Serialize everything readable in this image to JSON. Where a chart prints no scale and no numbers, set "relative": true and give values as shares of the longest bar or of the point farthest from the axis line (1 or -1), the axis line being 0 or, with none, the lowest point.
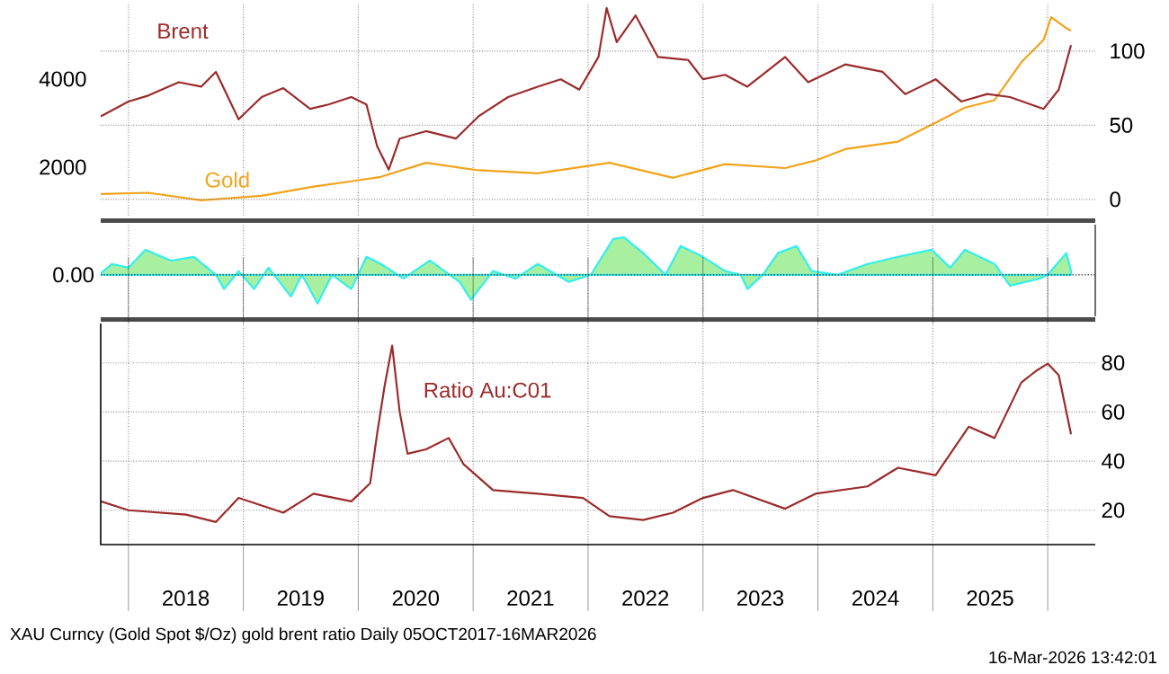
{
  "chart_data": [
    {
      "type": "line",
      "xlim": [
        "2017-10-05",
        "2026-06-01"
      ],
      "xticks": [
        {
          "value": "2018-01-01",
          "label": null
        },
        {
          "value": "2019-01-01",
          "label": null
        },
        {
          "value": "2020-01-01",
          "label": null
        },
        {
          "value": "2021-01-01",
          "label": null
        },
        {
          "value": "2022-01-01",
          "label": null
        },
        {
          "value": "2023-01-01",
          "label": null
        },
        {
          "value": "2024-01-01",
          "label": null
        },
        {
          "value": "2025-01-01",
          "label": null
        },
        {
          "value": "2026-01-01",
          "label": null
        }
      ],
      "ylim": [
        900,
        5710
      ],
      "yticks": [
        2000,
        4000
      ],
      "y2lim": [
        -11,
        132
      ],
      "y2ticks": [
        0,
        50,
        100
      ],
      "grid": true,
      "tick_labels": "y",
      "series": [
        {
          "name": "Brent",
          "axis": "y2",
          "color": "#9b2b2b",
          "x": [
            "2017-10-05",
            "2018-01-01",
            "2018-03-05",
            "2018-06-10",
            "2018-08-20",
            "2018-10-06",
            "2018-12-17",
            "2019-02-28",
            "2019-05-08",
            "2019-08-01",
            "2019-09-29",
            "2019-12-10",
            "2020-01-27",
            "2020-03-01",
            "2020-04-07",
            "2020-05-12",
            "2020-08-04",
            "2020-11-07",
            "2021-01-18",
            "2021-04-22",
            "2021-07-25",
            "2021-10-06",
            "2021-12-04",
            "2022-02-03",
            "2022-03-01",
            "2022-04-02",
            "2022-06-01",
            "2022-08-11",
            "2022-11-15",
            "2023-01-01",
            "2023-03-12",
            "2023-05-22",
            "2023-09-19",
            "2023-12-01",
            "2024-03-28",
            "2024-07-25",
            "2024-10-05",
            "2025-01-10",
            "2025-04-01",
            "2025-06-23",
            "2025-09-03",
            "2025-12-19",
            "2026-02-05",
            "2026-03-16"
          ],
          "values": [
            56,
            66,
            70,
            79,
            76,
            86,
            54,
            69,
            75,
            61,
            64,
            69,
            64,
            36,
            20,
            41,
            46,
            41,
            56,
            69,
            76,
            81,
            74,
            96,
            129,
            106,
            124,
            96,
            94,
            81,
            84,
            76,
            96,
            79,
            91,
            86,
            71,
            81,
            66,
            71,
            69,
            61,
            74,
            104
          ]
        },
        {
          "name": "Gold",
          "color": "#f2a31b",
          "x": [
            "2017-10-05",
            "2018-03-05",
            "2018-08-20",
            "2019-02-28",
            "2019-08-12",
            "2019-12-10",
            "2020-03-13",
            "2020-08-04",
            "2021-01-18",
            "2021-07-25",
            "2022-03-10",
            "2022-09-28",
            "2023-03-12",
            "2023-09-19",
            "2023-12-24",
            "2024-03-28",
            "2024-09-12",
            "2025-01-10",
            "2025-04-13",
            "2025-07-16",
            "2025-10-09",
            "2025-12-19",
            "2026-01-12",
            "2026-03-01",
            "2026-03-16"
          ],
          "values": [
            1390,
            1420,
            1250,
            1350,
            1560,
            1680,
            1780,
            2100,
            1930,
            1860,
            2100,
            1760,
            2070,
            1980,
            2150,
            2410,
            2580,
            3010,
            3350,
            3520,
            4380,
            4890,
            5400,
            5150,
            5100
          ]
        }
      ]
    },
    {
      "type": "area",
      "relative": true,
      "color": "#33eeee",
      "xlim": [
        "2017-10-05",
        "2026-06-01"
      ],
      "xticks": [
        {
          "value": "2018-01-01",
          "label": null
        },
        {
          "value": "2019-01-01",
          "label": null
        },
        {
          "value": "2020-01-01",
          "label": null
        },
        {
          "value": "2021-01-01",
          "label": null
        },
        {
          "value": "2022-01-01",
          "label": null
        },
        {
          "value": "2023-01-01",
          "label": null
        },
        {
          "value": "2024-01-01",
          "label": null
        },
        {
          "value": "2025-01-01",
          "label": null
        },
        {
          "value": "2026-01-01",
          "label": null
        }
      ],
      "grid": "x",
      "tick_labels": false,
      "ref_lines": [
        {
          "axis": "y",
          "value": 0,
          "label": "0.00",
          "line_style": "dotted"
        }
      ],
      "x": [
        "2017-10-05",
        "2017-11-10",
        "2018-01-01",
        "2018-02-24",
        "2018-05-16",
        "2018-07-28",
        "2018-10-06",
        "2018-11-01",
        "2018-12-17",
        "2019-02-04",
        "2019-03-22",
        "2019-06-01",
        "2019-07-06",
        "2019-08-25",
        "2019-10-10",
        "2019-12-10",
        "2020-01-27",
        "2020-03-13",
        "2020-05-24",
        "2020-08-16",
        "2020-11-19",
        "2020-12-25",
        "2021-03-05",
        "2021-05-16",
        "2021-07-25",
        "2021-11-01",
        "2022-01-10",
        "2022-03-22",
        "2022-04-25",
        "2022-06-25",
        "2022-09-04",
        "2022-10-22",
        "2023-01-01",
        "2023-03-12",
        "2023-05-01",
        "2023-05-22",
        "2023-07-10",
        "2023-08-27",
        "2023-10-25",
        "2023-12-12",
        "2024-03-04",
        "2024-06-07",
        "2024-09-12",
        "2024-12-28",
        "2025-02-25",
        "2025-04-13",
        "2025-07-16",
        "2025-09-03",
        "2025-12-07",
        "2026-01-01",
        "2026-03-01",
        "2026-03-16"
      ],
      "values": [
        0.04,
        0.29,
        0.19,
        0.67,
        0.38,
        0.48,
        0,
        -0.38,
        0.1,
        -0.38,
        0.19,
        -0.58,
        0,
        -0.77,
        0,
        -0.38,
        0.48,
        0.29,
        -0.1,
        0.38,
        -0.19,
        -0.67,
        0.1,
        -0.1,
        0.29,
        -0.19,
        0,
        0.96,
        1,
        0.58,
        0,
        0.77,
        0.48,
        0.1,
        0,
        -0.38,
        0,
        0.58,
        0.77,
        0.1,
        0,
        0.29,
        0.48,
        0.67,
        0.19,
        0.67,
        0.29,
        -0.29,
        -0.1,
        0,
        0.58,
        0.1
      ]
    },
    {
      "type": "line",
      "xlim": [
        "2017-10-05",
        "2026-06-01"
      ],
      "xticks": [
        {
          "value": "2018-01-01",
          "label": null
        },
        {
          "value": "2019-01-01",
          "label": null
        },
        {
          "value": "2020-01-01",
          "label": null
        },
        {
          "value": "2021-01-01",
          "label": null
        },
        {
          "value": "2022-01-01",
          "label": null
        },
        {
          "value": "2023-01-01",
          "label": null
        },
        {
          "value": "2024-01-01",
          "label": null
        },
        {
          "value": "2025-01-01",
          "label": null
        },
        {
          "value": "2026-01-01",
          "label": null
        },
        {
          "value": "2018-07-02",
          "label": "2018"
        },
        {
          "value": "2019-07-02",
          "label": "2019"
        },
        {
          "value": "2020-07-02",
          "label": "2020"
        },
        {
          "value": "2021-07-02",
          "label": "2021"
        },
        {
          "value": "2022-07-02",
          "label": "2022"
        },
        {
          "value": "2023-07-02",
          "label": "2023"
        },
        {
          "value": "2024-07-02",
          "label": "2024"
        },
        {
          "value": "2025-07-02",
          "label": "2025"
        }
      ],
      "ylim": [
        6,
        96
      ],
      "yticks": [
        20,
        40,
        60,
        80
      ],
      "grid": true,
      "series": [
        {
          "name": "Ratio Au:C01",
          "color": "#9b2b2b",
          "x": [
            "2017-10-05",
            "2018-01-01",
            "2018-07-03",
            "2018-10-06",
            "2018-12-17",
            "2019-05-08",
            "2019-08-12",
            "2019-12-10",
            "2020-02-08",
            "2020-03-01",
            "2020-03-25",
            "2020-04-18",
            "2020-05-12",
            "2020-06-06",
            "2020-08-04",
            "2020-10-15",
            "2020-12-01",
            "2021-03-05",
            "2021-07-25",
            "2021-12-16",
            "2022-03-10",
            "2022-06-25",
            "2022-09-28",
            "2023-01-01",
            "2023-04-06",
            "2023-09-19",
            "2023-12-24",
            "2024-06-07",
            "2024-09-12",
            "2025-01-10",
            "2025-04-25",
            "2025-07-16",
            "2025-10-09",
            "2025-11-25",
            "2026-01-01",
            "2026-02-05",
            "2026-03-16"
          ],
          "values": [
            23.6,
            20,
            18.2,
            15.2,
            25,
            19,
            26.7,
            23.6,
            31,
            51,
            70.6,
            87,
            60,
            43,
            44.8,
            49.4,
            38.8,
            28.2,
            26.7,
            25,
            17.6,
            16,
            19,
            25,
            28.2,
            20.6,
            26.7,
            29.7,
            37.3,
            34.2,
            54,
            49.4,
            72,
            76.7,
            79.7,
            75,
            50.9
          ]
        }
      ],
      "annotations": [
        "XAU Curncy (Gold Spot $/Oz) gold brent ratio Daily 05OCT2017-16MAR2026",
        "16-Mar-2026 13:42:01"
      ]
    }
  ]
}
